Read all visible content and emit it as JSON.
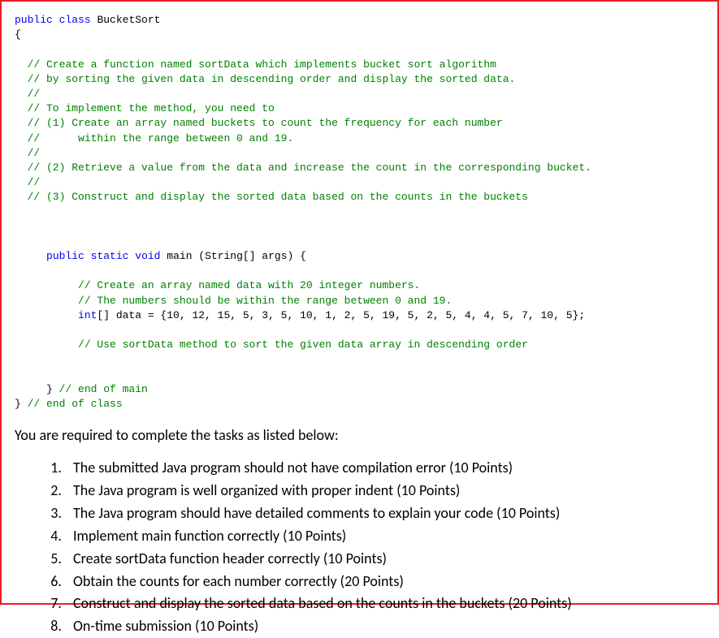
{
  "code": {
    "l01_a": "public",
    "l01_b": " ",
    "l01_c": "class",
    "l01_d": " ",
    "l01_e": "BucketSort",
    "l02": "{",
    "l03": "",
    "l04": "  // Create a function named sortData which implements bucket sort algorithm",
    "l05": "  // by sorting the given data in descending order and display the sorted data.",
    "l06": "  //",
    "l07": "  // To implement the method, you need to",
    "l08": "  // (1) Create an array named buckets to count the frequency for each number",
    "l09": "  //      within the range between 0 and 19.",
    "l10": "  //",
    "l11": "  // (2) Retrieve a value from the data and increase the count in the corresponding bucket.",
    "l12": "  //",
    "l13": "  // (3) Construct and display the sorted data based on the counts in the buckets",
    "l14": "",
    "l15": "",
    "l16": "",
    "m01_pad": "     ",
    "m01_a": "public",
    "m01_b": " ",
    "m01_c": "static",
    "m01_d": " ",
    "m01_e": "void",
    "m01_f": " main (String[] args) {",
    "m02": "",
    "m03": "          // Create an array named data with 20 integer numbers.",
    "m04": "          // The numbers should be within the range between 0 and 19.",
    "m05_pad": "          ",
    "m05_a": "int",
    "m05_b": "[] data = {10, 12, 15, 5, 3, 5, 10, 1, 2, 5, 19, 5, 2, 5, 4, 4, 5, 7, 10, 5};",
    "m06": "",
    "m07": "          // Use sortData method to sort the given data array in descending order",
    "m08": "",
    "m09": "",
    "m10_a": "     } ",
    "m10_b": "// end of main",
    "m11_a": "} ",
    "m11_b": "// end of class"
  },
  "instructions_header": "You are required to complete the tasks as listed below:",
  "tasks": {
    "t1": "The submitted Java program should not have compilation error (10 Points)",
    "t2": "The Java program is well organized with proper indent (10 Points)",
    "t3": "The Java program should have detailed comments to explain your code (10 Points)",
    "t4": "Implement main function correctly (10 Points)",
    "t5": "Create sortData function header correctly (10 Points)",
    "t6": "Obtain the counts for each number correctly (20 Points)",
    "t7": "Construct and display the sorted data based on the counts in the buckets (20 Points)",
    "t8": "On-time submission (10 Points)"
  }
}
